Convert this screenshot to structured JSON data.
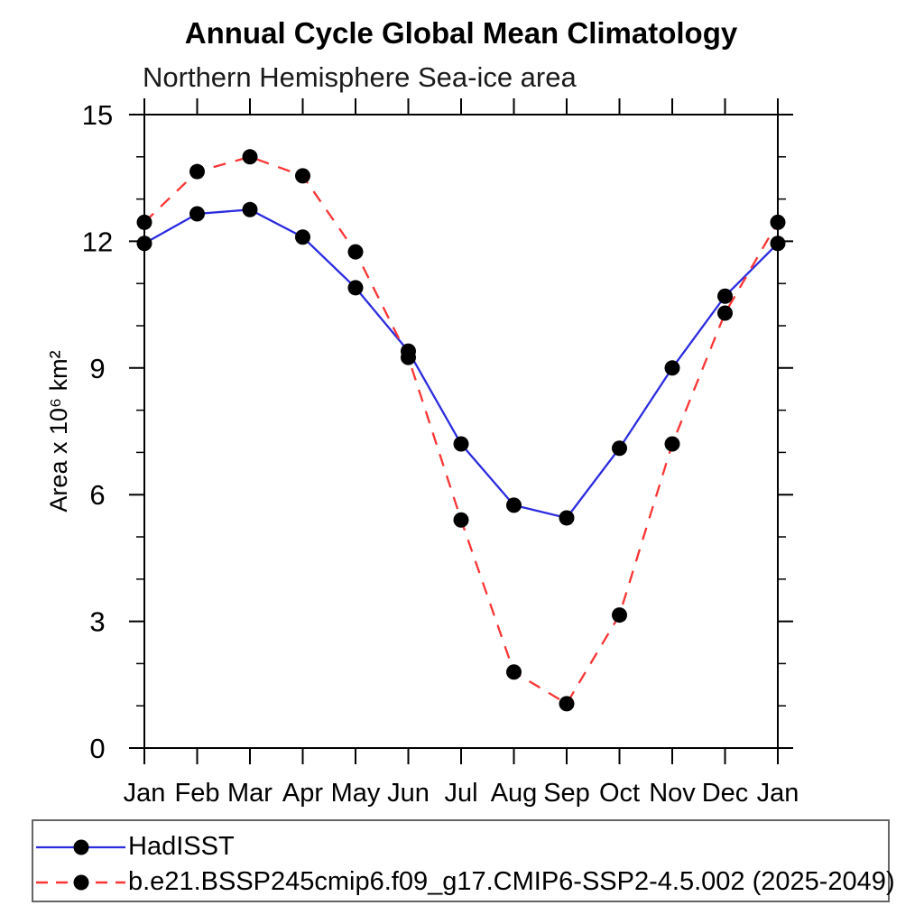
{
  "page": {
    "background": "#ffffff"
  },
  "header": {
    "title": "Annual Cycle Global Mean Climatology",
    "subtitle": "Northern Hemisphere Sea-ice area"
  },
  "chart_data": {
    "type": "line",
    "title": "Annual Cycle Global Mean Climatology",
    "subtitle": "Northern Hemisphere Sea-ice area",
    "xlabel": "",
    "ylabel": "Area x 10⁶ km²",
    "categories": [
      "Jan",
      "Feb",
      "Mar",
      "Apr",
      "May",
      "Jun",
      "Jul",
      "Aug",
      "Sep",
      "Oct",
      "Nov",
      "Dec",
      "Jan"
    ],
    "ylim": [
      0,
      15
    ],
    "ytick_major": [
      0,
      3,
      6,
      9,
      12,
      15
    ],
    "ytick_minor_step": 1,
    "grid": false,
    "legend_position": "bottom",
    "series": [
      {
        "name": "HadISST",
        "color": "#2b2be0",
        "line_style": "solid",
        "marker": "filled-circle",
        "marker_color": "#000000",
        "values": [
          11.95,
          12.65,
          12.75,
          12.1,
          10.9,
          9.4,
          7.2,
          5.75,
          5.45,
          7.1,
          9.0,
          10.7,
          11.95
        ]
      },
      {
        "name": "b.e21.BSSP245cmip6.f09_g17.CMIP6-SSP2-4.5.002 (2025-2049)",
        "color": "#fb3434",
        "line_style": "dashed",
        "marker": "filled-circle",
        "marker_color": "#000000",
        "values": [
          12.45,
          13.65,
          14.0,
          13.55,
          11.75,
          9.25,
          5.4,
          1.8,
          1.05,
          3.15,
          7.2,
          10.3,
          12.45
        ]
      }
    ]
  },
  "axes": {
    "axis_color": "#000000",
    "tick_label_color": "#000000"
  }
}
